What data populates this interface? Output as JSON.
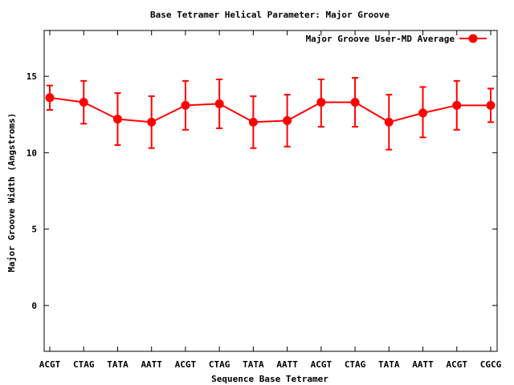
{
  "chart_data": {
    "type": "line",
    "title": "Base Tetramer Helical Parameter: Major Groove",
    "xlabel": "Sequence Base Tetramer",
    "ylabel": "Major Groove Width (Angstroms)",
    "ylim": [
      -3,
      18
    ],
    "yticks": [
      0,
      5,
      10,
      15
    ],
    "categories": [
      "ACGT",
      "CTAG",
      "TATA",
      "AATT",
      "ACGT",
      "CTAG",
      "TATA",
      "AATT",
      "ACGT",
      "CTAG",
      "TATA",
      "AATT",
      "ACGT",
      "CGCG"
    ],
    "series": [
      {
        "name": "Major Groove User-MD Average",
        "color": "#ff0000",
        "marker": "circle",
        "values": [
          13.6,
          13.3,
          12.2,
          12.0,
          13.1,
          13.2,
          12.0,
          12.1,
          13.3,
          13.3,
          12.0,
          12.6,
          13.1,
          13.1
        ],
        "error_low": [
          12.8,
          11.9,
          10.5,
          10.3,
          11.5,
          11.6,
          10.3,
          10.4,
          11.7,
          11.7,
          10.2,
          11.0,
          11.5,
          12.0
        ],
        "error_high": [
          14.4,
          14.7,
          13.9,
          13.7,
          14.7,
          14.8,
          13.7,
          13.8,
          14.8,
          14.9,
          13.8,
          14.3,
          14.7,
          14.2
        ]
      }
    ],
    "grid": false,
    "legend_position": "top-right"
  }
}
